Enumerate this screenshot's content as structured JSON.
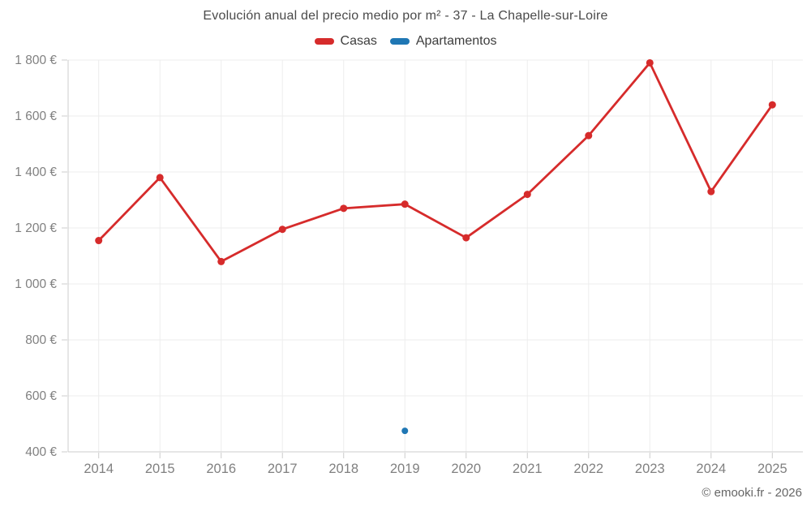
{
  "footer": {
    "text": "© emooki.fr - 2026"
  },
  "chart_data": {
    "type": "line",
    "title": "Evolución anual del precio medio por m² - 37 - La Chapelle-sur-Loire",
    "categories": [
      "2014",
      "2015",
      "2016",
      "2017",
      "2018",
      "2019",
      "2020",
      "2021",
      "2022",
      "2023",
      "2024",
      "2025"
    ],
    "series": [
      {
        "name": "Casas",
        "color": "#d62b2b",
        "marker_radius": 4.5,
        "line_width": 2.8,
        "values": [
          1155,
          1380,
          1080,
          1195,
          1270,
          1285,
          1165,
          1320,
          1530,
          1790,
          1330,
          1640
        ]
      },
      {
        "name": "Apartamentos",
        "color": "#1f77b4",
        "marker_radius": 4,
        "line_width": 2.8,
        "values": [
          null,
          null,
          null,
          null,
          null,
          475,
          null,
          null,
          null,
          null,
          null,
          null
        ]
      }
    ],
    "xlabel": "",
    "ylabel": "",
    "ylim": [
      400,
      1800
    ],
    "ytick_step": 200,
    "ytick_suffix": " €",
    "grid": true,
    "legend_position": "top",
    "colors": {
      "gridline": "#ededed",
      "axis": "#cccccc",
      "tick": "#cccccc",
      "tick_label": "#808080",
      "background": "#ffffff"
    }
  }
}
